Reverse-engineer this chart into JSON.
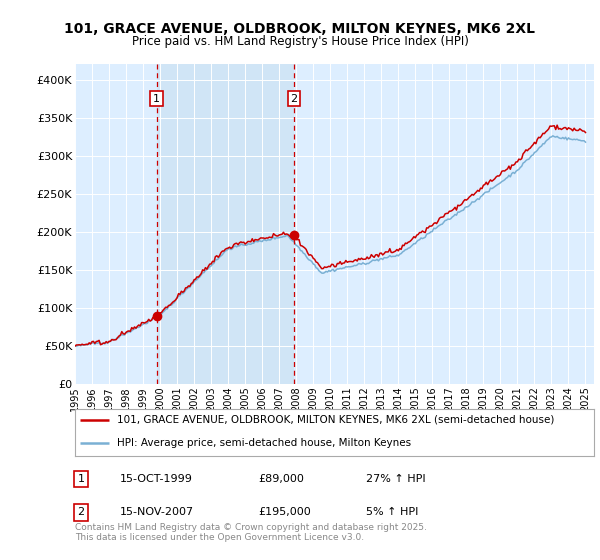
{
  "title1": "101, GRACE AVENUE, OLDBROOK, MILTON KEYNES, MK6 2XL",
  "title2": "Price paid vs. HM Land Registry's House Price Index (HPI)",
  "legend_line1": "101, GRACE AVENUE, OLDBROOK, MILTON KEYNES, MK6 2XL (semi-detached house)",
  "legend_line2": "HPI: Average price, semi-detached house, Milton Keynes",
  "footnote": "Contains HM Land Registry data © Crown copyright and database right 2025.\nThis data is licensed under the Open Government Licence v3.0.",
  "purchase1_date": "15-OCT-1999",
  "purchase1_price": 89000,
  "purchase1_hpi": "27% ↑ HPI",
  "purchase2_date": "15-NOV-2007",
  "purchase2_price": 195000,
  "purchase2_hpi": "5% ↑ HPI",
  "red_color": "#cc0000",
  "blue_color": "#7ab0d4",
  "bg_color": "#ddeeff",
  "bg_color2": "#c8dff0",
  "ylim": [
    0,
    420000
  ],
  "yticks": [
    0,
    50000,
    100000,
    150000,
    200000,
    250000,
    300000,
    350000,
    400000
  ],
  "ytick_labels": [
    "£0",
    "£50K",
    "£100K",
    "£150K",
    "£200K",
    "£250K",
    "£300K",
    "£350K",
    "£400K"
  ],
  "purchase1_t": 1999.79,
  "purchase2_t": 2007.87,
  "xlim_start": 1995.0,
  "xlim_end": 2025.5
}
